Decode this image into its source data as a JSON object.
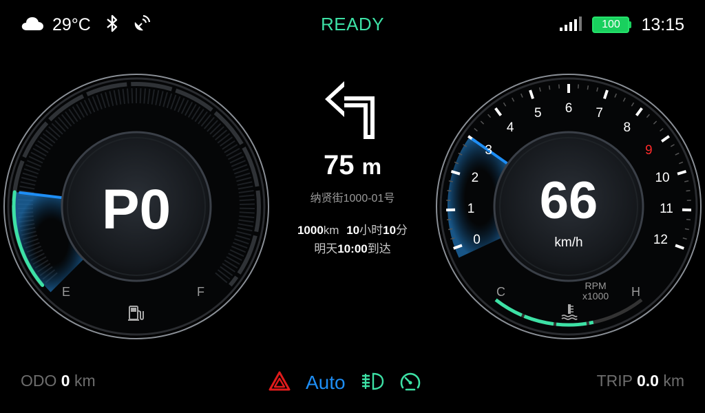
{
  "status": {
    "temperature": "29°C",
    "ready": "READY",
    "battery": "100",
    "time": "13:15"
  },
  "fuel_gauge": {
    "gear": "P0",
    "empty_label": "E",
    "full_label": "F",
    "fuel_level": 0.18
  },
  "navigation": {
    "distance": "75",
    "distance_unit": "m",
    "street": "纳贤街1000-01号",
    "remaining_distance": "1000",
    "remaining_distance_unit": "km",
    "remaining_hours": "10",
    "hours_unit": "小时",
    "remaining_minutes": "10",
    "minutes_unit": "分",
    "arrival_prefix": "明天",
    "arrival_time": "10:00",
    "arrival_suffix": "到达"
  },
  "speed_gauge": {
    "speed": "66",
    "speed_unit": "km/h",
    "rpm_label_1": "RPM",
    "rpm_label_2": "x1000",
    "cold_label": "C",
    "hot_label": "H",
    "rpm_ticks": [
      "0",
      "1",
      "2",
      "3",
      "4",
      "5",
      "6",
      "7",
      "8",
      "9",
      "10",
      "11",
      "12"
    ],
    "rpm_value": 3,
    "redline_tick": "9"
  },
  "bottom": {
    "odo_label": "ODO",
    "odo_value": "0",
    "odo_unit": "km",
    "trip_label": "TRIP",
    "trip_value": "0.0",
    "trip_unit": "km",
    "auto_label": "Auto"
  },
  "colors": {
    "accent_green": "#3de1a5",
    "accent_blue": "#1e8ef5",
    "hazard_red": "#e01b1b",
    "redline": "#ff2a2a"
  },
  "icons": [
    "cloud-icon",
    "bluetooth-icon",
    "satellite-icon",
    "signal-icon",
    "turn-left-arrow-icon",
    "fuel-pump-icon",
    "coolant-temp-icon",
    "hazard-icon",
    "headlight-icon",
    "speedometer-icon"
  ]
}
